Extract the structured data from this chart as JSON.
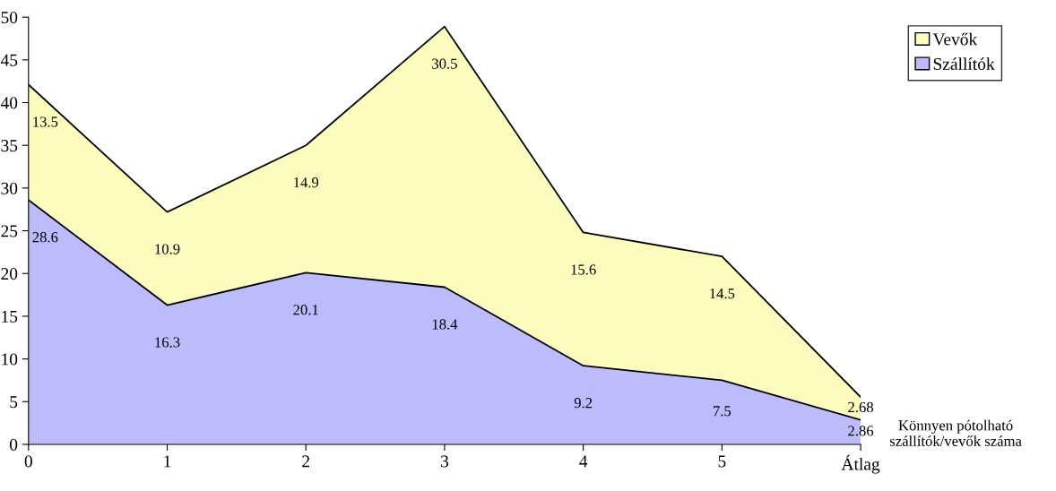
{
  "chart_data": {
    "type": "area",
    "stacked": true,
    "xlabel": "Könnyen pótolható\nszállítók/vevők száma",
    "categories": [
      "0",
      "1",
      "2",
      "3",
      "4",
      "5",
      "Átlag"
    ],
    "series": [
      {
        "name": "Szállítók",
        "color": "#bcbcfc",
        "values": [
          28.6,
          16.3,
          20.1,
          18.4,
          9.2,
          7.5,
          2.86
        ]
      },
      {
        "name": "Vevők",
        "color": "#fcfcbc",
        "values": [
          13.5,
          10.9,
          14.9,
          30.5,
          15.6,
          14.5,
          2.68
        ]
      }
    ],
    "ylim": [
      0,
      50
    ],
    "yticks": [
      0,
      5,
      10,
      15,
      20,
      25,
      30,
      35,
      40,
      45,
      50
    ],
    "data_labels": true,
    "legend": "top right",
    "grid": false
  }
}
